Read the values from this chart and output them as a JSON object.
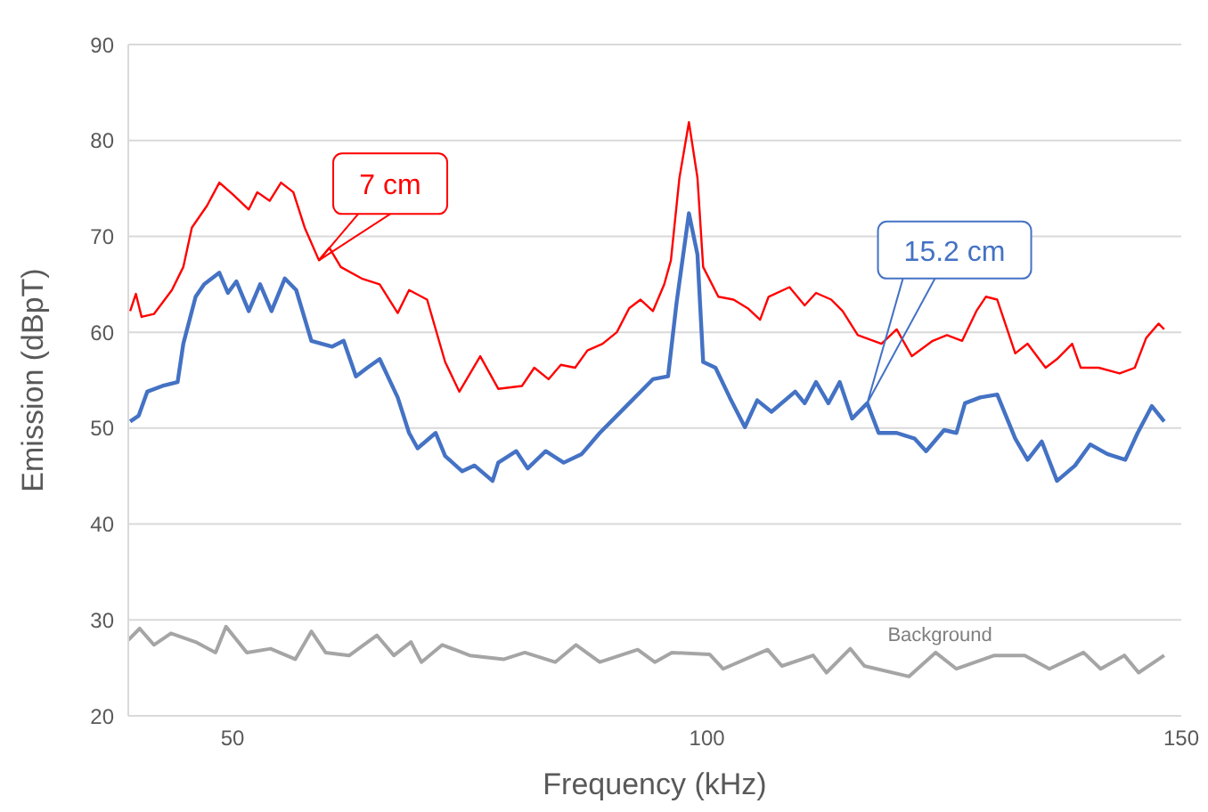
{
  "chart_data": {
    "type": "line",
    "xlabel": "Frequency (kHz)",
    "ylabel": "Emission (dBpT)",
    "xlim": [
      39,
      150
    ],
    "xticks": [
      50,
      100,
      150
    ],
    "ylim": [
      20,
      90
    ],
    "yticks": [
      20,
      30,
      40,
      50,
      60,
      70,
      80,
      90
    ],
    "grid": "y",
    "legend": false,
    "marker": "none",
    "line_style": "solid",
    "series": [
      {
        "name": "7 cm",
        "color": "#ff0000",
        "x": [
          39.2,
          39.8,
          40.4,
          41.7,
          43.6,
          44.8,
          45.7,
          47.3,
          48.6,
          50.1,
          51.7,
          52.6,
          53.9,
          55.1,
          56.4,
          57.6,
          59.1,
          60.2,
          61.4,
          63.6,
          65.5,
          67.4,
          68.6,
          70.5,
          72.4,
          73.9,
          76.1,
          78.0,
          80.5,
          81.8,
          83.3,
          84.6,
          86.1,
          87.4,
          89.0,
          90.5,
          91.8,
          93.0,
          94.3,
          95.5,
          96.2,
          97.1,
          98.1,
          99.0,
          99.6,
          101.2,
          102.8,
          104.3,
          105.6,
          106.5,
          108.7,
          110.3,
          111.5,
          113.1,
          114.3,
          115.9,
          118.4,
          120.0,
          121.6,
          123.8,
          125.3,
          126.9,
          128.4,
          129.4,
          130.6,
          132.5,
          133.8,
          135.7,
          136.9,
          138.5,
          139.4,
          141.3,
          143.5,
          145.1,
          146.3,
          147.6,
          148.2
        ],
        "values": [
          62.2,
          64.0,
          61.6,
          61.9,
          64.4,
          66.8,
          70.9,
          73.2,
          75.6,
          74.3,
          72.8,
          74.6,
          73.7,
          75.6,
          74.6,
          70.9,
          67.5,
          68.8,
          66.8,
          65.6,
          65.0,
          62.0,
          64.4,
          63.4,
          56.9,
          53.8,
          57.5,
          54.1,
          54.4,
          56.3,
          55.1,
          56.6,
          56.3,
          58.1,
          58.8,
          60.0,
          62.5,
          63.4,
          62.2,
          65.0,
          67.5,
          76.1,
          81.9,
          76.1,
          66.8,
          63.7,
          63.4,
          62.5,
          61.3,
          63.7,
          64.7,
          62.8,
          64.1,
          63.4,
          62.2,
          59.7,
          58.8,
          60.3,
          57.5,
          59.1,
          59.7,
          59.1,
          62.2,
          63.7,
          63.4,
          57.8,
          58.8,
          56.3,
          57.2,
          58.8,
          56.3,
          56.3,
          55.7,
          56.3,
          59.4,
          60.9,
          60.3
        ]
      },
      {
        "name": "15.2 cm",
        "color": "#4472c4",
        "x": [
          39.2,
          40.1,
          41.0,
          42.6,
          44.2,
          44.8,
          46.1,
          47.0,
          48.6,
          49.5,
          50.4,
          51.7,
          52.9,
          54.1,
          55.5,
          56.7,
          58.3,
          60.5,
          61.7,
          63.0,
          64.2,
          65.5,
          67.4,
          68.6,
          69.5,
          71.4,
          72.4,
          74.2,
          75.5,
          77.4,
          78.0,
          79.9,
          81.1,
          83.0,
          84.9,
          86.8,
          88.7,
          90.5,
          91.8,
          93.0,
          94.3,
          95.9,
          96.8,
          98.1,
          99.0,
          99.6,
          100.9,
          102.4,
          104.0,
          105.3,
          106.8,
          109.3,
          110.3,
          111.5,
          112.8,
          114.0,
          115.3,
          116.9,
          118.1,
          120.0,
          121.9,
          123.1,
          125.0,
          126.3,
          127.2,
          128.8,
          130.6,
          132.5,
          133.8,
          135.3,
          136.9,
          138.8,
          140.4,
          142.2,
          144.1,
          145.4,
          146.9,
          148.2
        ],
        "values": [
          50.7,
          51.3,
          53.8,
          54.4,
          54.8,
          58.8,
          63.7,
          65.0,
          66.2,
          64.1,
          65.3,
          62.2,
          65.0,
          62.2,
          65.6,
          64.4,
          59.1,
          58.5,
          59.1,
          55.4,
          56.3,
          57.2,
          53.2,
          49.5,
          47.9,
          49.5,
          47.1,
          45.5,
          46.1,
          44.5,
          46.4,
          47.6,
          45.8,
          47.6,
          46.4,
          47.3,
          49.5,
          51.3,
          52.6,
          53.8,
          55.1,
          55.4,
          63.1,
          72.4,
          68.1,
          56.9,
          56.3,
          53.2,
          50.1,
          52.9,
          51.7,
          53.8,
          52.6,
          54.8,
          52.6,
          54.8,
          51.0,
          52.6,
          49.5,
          49.5,
          48.9,
          47.6,
          49.8,
          49.5,
          52.6,
          53.2,
          53.5,
          48.9,
          46.7,
          48.6,
          44.5,
          46.1,
          48.3,
          47.3,
          46.7,
          49.5,
          52.3,
          50.7
        ]
      },
      {
        "name": "Background",
        "color": "#a5a5a5",
        "x": [
          39.0,
          40.2,
          41.7,
          43.5,
          46.1,
          48.2,
          49.3,
          51.5,
          54.0,
          56.6,
          58.3,
          59.8,
          62.3,
          65.2,
          67.0,
          68.8,
          69.9,
          72.1,
          75.0,
          78.6,
          80.8,
          84.0,
          86.2,
          88.7,
          92.7,
          94.5,
          96.3,
          100.3,
          101.7,
          106.4,
          107.9,
          111.2,
          112.6,
          115.1,
          116.6,
          121.3,
          124.1,
          126.3,
          130.3,
          133.5,
          136.1,
          139.7,
          141.5,
          144.0,
          145.5,
          148.2
        ],
        "values": [
          27.9,
          29.1,
          27.4,
          28.6,
          27.7,
          26.6,
          29.3,
          26.6,
          27.0,
          25.9,
          28.8,
          26.6,
          26.3,
          28.4,
          26.3,
          27.7,
          25.6,
          27.4,
          26.3,
          25.9,
          26.6,
          25.6,
          27.4,
          25.6,
          26.9,
          25.6,
          26.6,
          26.4,
          24.9,
          26.9,
          25.2,
          26.3,
          24.5,
          27.0,
          25.2,
          24.1,
          26.6,
          24.9,
          26.3,
          26.3,
          24.9,
          26.6,
          24.9,
          26.3,
          24.5,
          26.3
        ]
      }
    ]
  }
}
